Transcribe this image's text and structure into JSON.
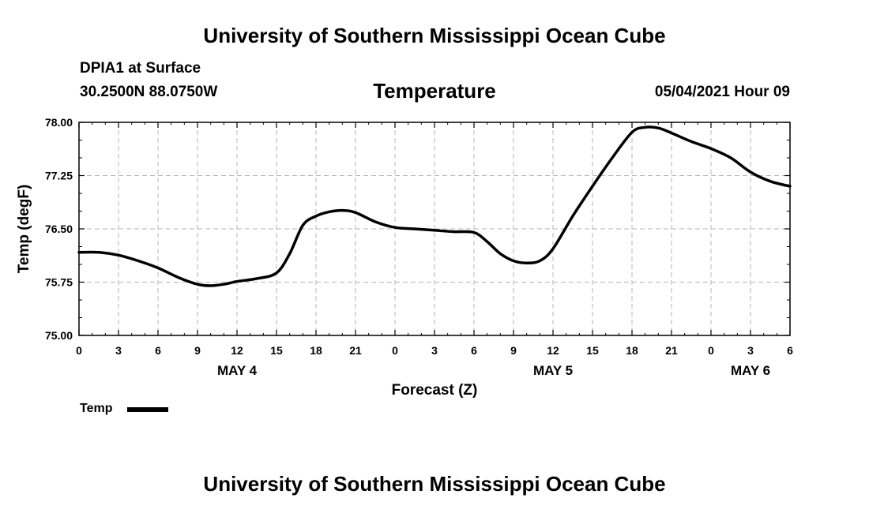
{
  "header": {
    "title": "University of Southern Mississippi Ocean Cube",
    "station": "DPIA1 at Surface",
    "coordinates": "30.2500N  88.0750W",
    "variable": "Temperature",
    "datetime": "05/04/2021 Hour 09"
  },
  "footer": {
    "title": "University of Southern Mississippi Ocean Cube"
  },
  "legend": {
    "label": "Temp"
  },
  "chart_data": {
    "type": "line",
    "title": "Temperature",
    "xlabel": "Forecast (Z)",
    "ylabel": "Temp (degF)",
    "ylim": [
      75.0,
      78.0
    ],
    "yticks": [
      "75.00",
      "75.75",
      "76.50",
      "77.25",
      "78.00"
    ],
    "xlim_hours": [
      0,
      54
    ],
    "xtick_hours": [
      0,
      3,
      6,
      9,
      12,
      15,
      18,
      21,
      24,
      27,
      30,
      33,
      36,
      39,
      42,
      45,
      48,
      51,
      54
    ],
    "xtick_labels": [
      "0",
      "3",
      "6",
      "9",
      "12",
      "15",
      "18",
      "21",
      "0",
      "3",
      "6",
      "9",
      "12",
      "15",
      "18",
      "21",
      "0",
      "3",
      "6"
    ],
    "day_labels": [
      {
        "hour": 12,
        "label": "MAY 4"
      },
      {
        "hour": 36,
        "label": "MAY 5"
      },
      {
        "hour": 51,
        "label": "MAY 6"
      }
    ],
    "grid": true,
    "legend_position": "bottom-left",
    "series": [
      {
        "name": "Temp",
        "x": [
          0,
          1.5,
          3,
          4.5,
          6,
          7.5,
          9,
          10,
          11,
          12,
          13.5,
          15,
          16,
          17,
          18,
          19,
          20,
          21,
          22.5,
          24,
          25.5,
          27,
          28.5,
          30,
          31,
          32,
          33,
          34,
          35,
          36,
          37.5,
          39,
          40.5,
          42,
          43,
          44,
          45,
          46.5,
          48,
          49.5,
          51,
          52.5,
          54
        ],
        "values": [
          76.17,
          76.17,
          76.13,
          76.05,
          75.95,
          75.82,
          75.72,
          75.7,
          75.72,
          75.76,
          75.8,
          75.88,
          76.15,
          76.55,
          76.68,
          76.74,
          76.76,
          76.73,
          76.6,
          76.52,
          76.5,
          76.48,
          76.46,
          76.45,
          76.32,
          76.15,
          76.05,
          76.02,
          76.05,
          76.22,
          76.68,
          77.1,
          77.5,
          77.86,
          77.93,
          77.92,
          77.85,
          77.73,
          77.63,
          77.5,
          77.3,
          77.17,
          77.1
        ]
      }
    ]
  }
}
